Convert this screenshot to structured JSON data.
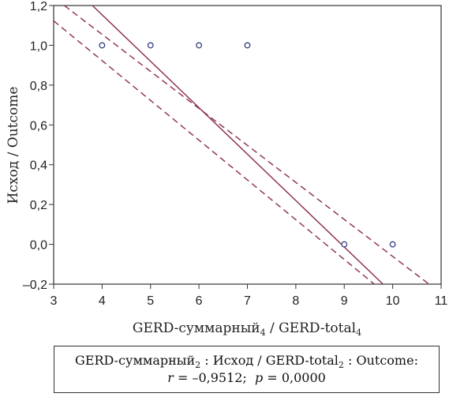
{
  "chart_data": {
    "type": "scatter",
    "xlabel": "GERD-суммарный",
    "xlabel_sub": "4",
    "xlabel_sep": " / ",
    "xlabel2": "GERD-total",
    "xlabel2_sub": "4",
    "ylabel": "Исход / Outcome",
    "xlim": [
      3,
      11
    ],
    "ylim": [
      -0.2,
      1.2
    ],
    "x_ticks": [
      3,
      4,
      5,
      6,
      7,
      8,
      9,
      10,
      11
    ],
    "x_tick_labels": [
      "3",
      "4",
      "5",
      "6",
      "7",
      "8",
      "9",
      "10",
      "11"
    ],
    "y_ticks": [
      -0.2,
      0,
      0.2,
      0.4,
      0.6,
      0.8,
      1.0,
      1.2
    ],
    "y_tick_labels": [
      "–0,2",
      "0,0",
      "0,2",
      "0,4",
      "0,6",
      "0,8",
      "1,0",
      "1,2"
    ],
    "grid": false,
    "points": [
      {
        "x": 4,
        "y": 1.0
      },
      {
        "x": 5,
        "y": 1.0
      },
      {
        "x": 6,
        "y": 1.0
      },
      {
        "x": 7,
        "y": 1.0
      },
      {
        "x": 9,
        "y": 0.0
      },
      {
        "x": 10,
        "y": 0.0
      }
    ],
    "regression_line": {
      "x": [
        3.8,
        9.8
      ],
      "y": [
        1.2,
        -0.2
      ]
    },
    "confidence_band_upper": {
      "x": [
        3.22,
        10.75
      ],
      "y": [
        1.2,
        -0.2
      ]
    },
    "confidence_band_lower": {
      "x": [
        3.0,
        9.62
      ],
      "y": [
        1.123,
        -0.2
      ]
    },
    "line_color": "#8a2b4a",
    "marker_color": "#2a2f78"
  },
  "stats": {
    "line1_a": "GERD-суммарный",
    "line1_a_sub": "2",
    "line1_b": " : Исход / GERD-total",
    "line1_b_sub": "2",
    "line1_c": " : Outcome:",
    "r_symbol": "r",
    "r_value": " = –0,9512;  ",
    "p_symbol": "p",
    "p_value": " = 0,0000"
  }
}
